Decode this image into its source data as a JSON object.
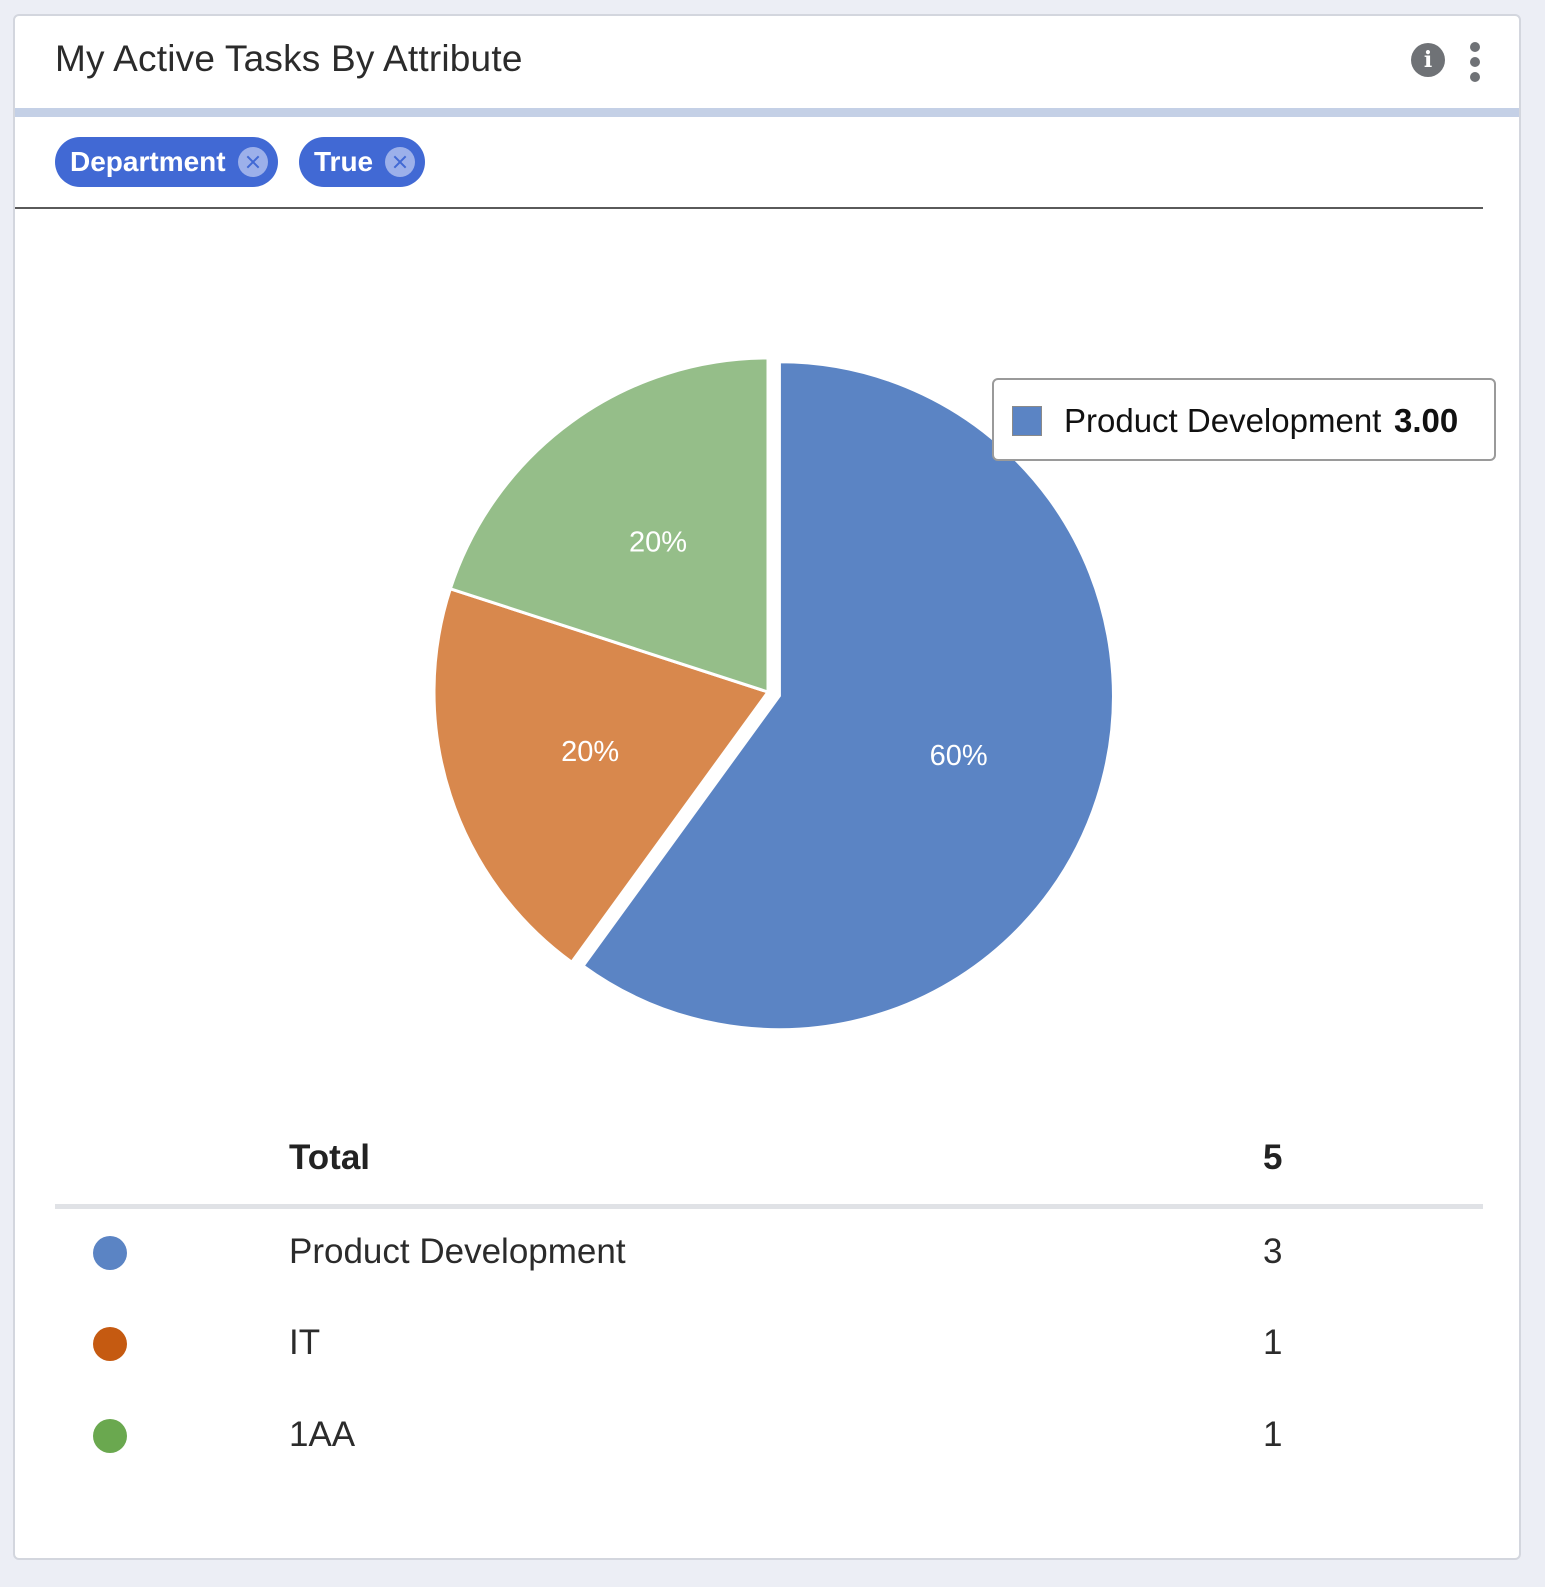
{
  "widget": {
    "title": "My Active Tasks By Attribute",
    "info_icon": "info-icon",
    "info_glyph": "i",
    "menu_icon": "vertical-dots-icon"
  },
  "filters": [
    {
      "label": "Department",
      "remove_icon": "close-circle-icon"
    },
    {
      "label": "True",
      "remove_icon": "close-circle-icon"
    }
  ],
  "chart_data": {
    "type": "pie",
    "categories": [
      "Product Development",
      "IT",
      "1AA"
    ],
    "values": [
      3,
      1,
      1
    ],
    "slice_labels": [
      "60%",
      "20%",
      "20%"
    ],
    "colors": [
      "#5b84c4",
      "#d8884d",
      "#95be89"
    ],
    "start_angle_deg": 0,
    "direction": "clockwise"
  },
  "tooltip": {
    "label": "Product Development",
    "value": "3.00",
    "color": "#5b84c4"
  },
  "summary": {
    "total_label": "Total",
    "total_value": "5",
    "rows": [
      {
        "name": "Product Development",
        "count": "3",
        "color": "#5b84c4"
      },
      {
        "name": "IT",
        "count": "1",
        "color": "#c55a11"
      },
      {
        "name": "1AA",
        "count": "1",
        "color": "#6aa84f"
      }
    ]
  }
}
